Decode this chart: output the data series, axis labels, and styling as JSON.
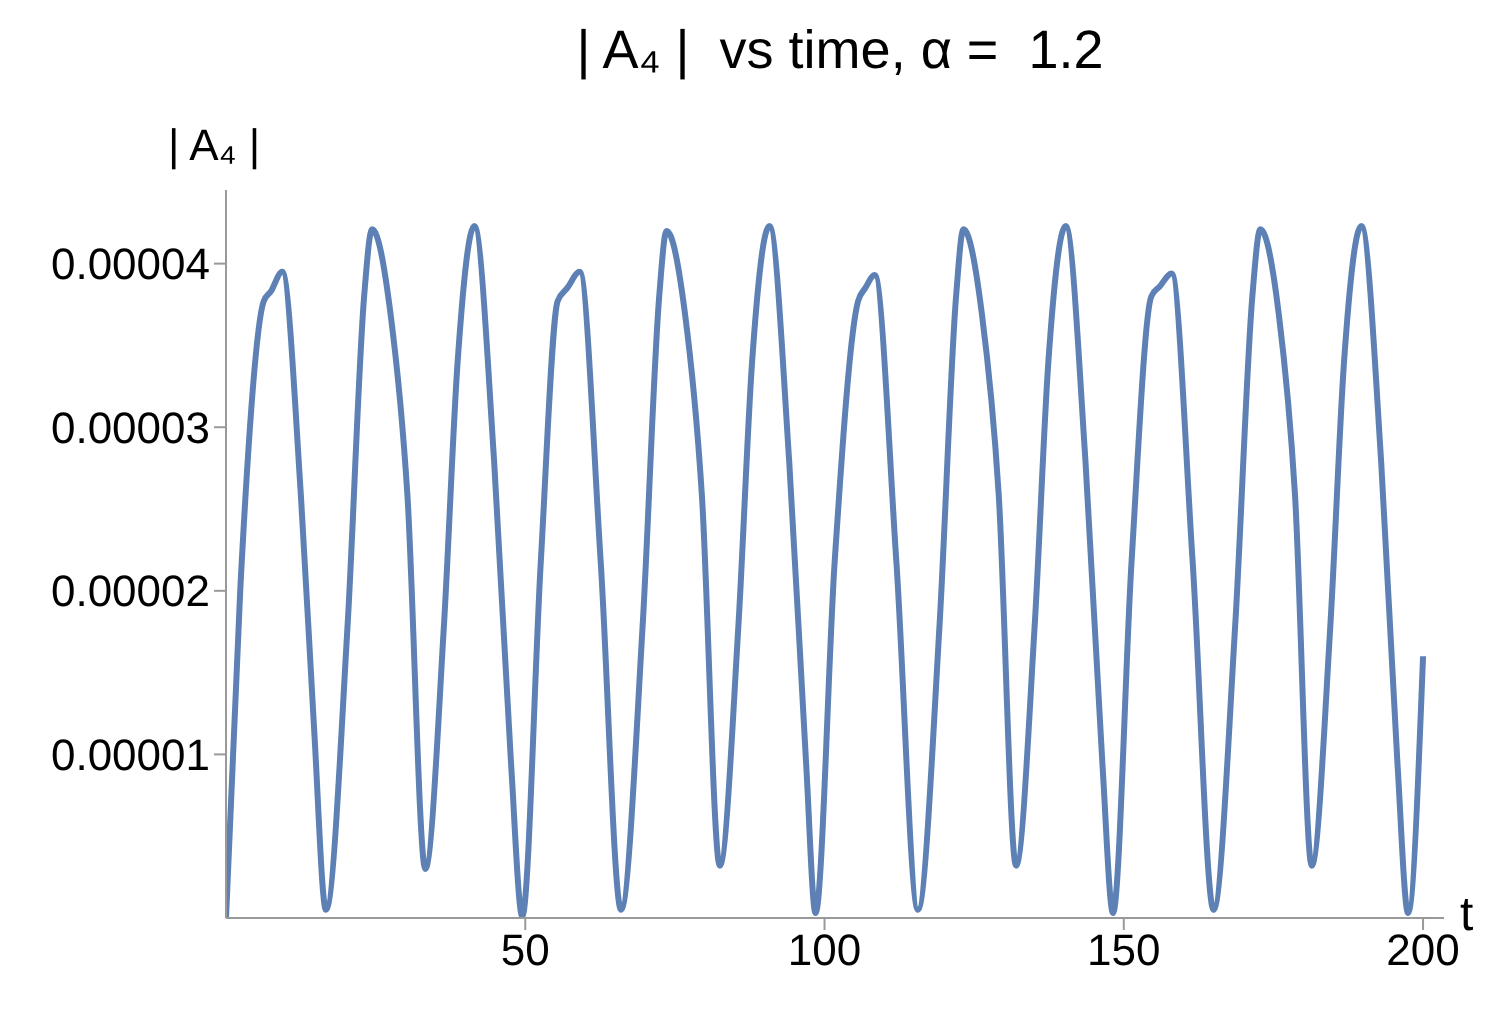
{
  "chart_data": {
    "type": "line",
    "title": "| A₄ |  vs time, α =  1.2",
    "xlabel": "t",
    "ylabel": "| A₄ |",
    "x": [
      0,
      2.4,
      6.3,
      7.5,
      9.4,
      12.5,
      14.7,
      16.7,
      20.3,
      23.1,
      24.4,
      27.5,
      30.3,
      33.3,
      36.4,
      38.7,
      41.5,
      44.8,
      47.6,
      49.5,
      52.6,
      55.4,
      57,
      59.1,
      62.6,
      66,
      69.6,
      72.4,
      73.6,
      76.7,
      79.5,
      82.5,
      85.6,
      87.9,
      90.8,
      94.1,
      96.9,
      98.5,
      101.7,
      105.6,
      106.8,
      108.4,
      112,
      115.6,
      119.2,
      122,
      123.2,
      126.3,
      129.1,
      132,
      135.1,
      137.4,
      140.3,
      143.6,
      146.4,
      148.2,
      151.3,
      154.6,
      156,
      158,
      161.5,
      165,
      168.6,
      171.5,
      172.8,
      175.9,
      178.6,
      181.4,
      184.5,
      186.8,
      189.7,
      193,
      195.7,
      197.5,
      200
    ],
    "series": [
      {
        "color": "#5e81b5",
        "values": [
          0,
          2.02e-05,
          3.77e-05,
          3.83e-05,
          3.95e-05,
          2.59e-05,
          1.17e-05,
          5e-07,
          1.78e-05,
          3.81e-05,
          4.21e-05,
          3.69e-05,
          2.59e-05,
          3e-06,
          1.78e-05,
          3.4e-05,
          4.23e-05,
          2.79e-05,
          9.6e-06,
          1e-07,
          2.18e-05,
          3.77e-05,
          3.85e-05,
          3.95e-05,
          2.18e-05,
          5e-07,
          1.78e-05,
          3.81e-05,
          4.2e-05,
          3.69e-05,
          2.59e-05,
          3.2e-06,
          1.78e-05,
          3.4e-05,
          4.23e-05,
          2.79e-05,
          9.6e-06,
          3e-07,
          2.18e-05,
          3.77e-05,
          3.85e-05,
          3.93e-05,
          2.18e-05,
          5e-07,
          1.78e-05,
          3.81e-05,
          4.21e-05,
          3.69e-05,
          2.59e-05,
          3.2e-06,
          1.78e-05,
          3.4e-05,
          4.23e-05,
          2.79e-05,
          9.6e-06,
          3e-07,
          2.18e-05,
          3.8e-05,
          3.86e-05,
          3.94e-05,
          2.18e-05,
          5e-07,
          1.78e-05,
          3.81e-05,
          4.21e-05,
          3.69e-05,
          2.59e-05,
          3.2e-06,
          1.78e-05,
          3.4e-05,
          4.23e-05,
          2.79e-05,
          9.6e-06,
          3e-07,
          1.6e-05
        ]
      }
    ],
    "xlim": [
      0,
      203.5
    ],
    "xticks": [
      50,
      100,
      150,
      200
    ],
    "ylim": [
      0,
      4.45e-05
    ],
    "yticks": [
      {
        "value": 1e-05,
        "label": "0.00001"
      },
      {
        "value": 2e-05,
        "label": "0.00002"
      },
      {
        "value": 3e-05,
        "label": "0.00003"
      },
      {
        "value": 4e-05,
        "label": "0.00004"
      }
    ],
    "grid": false,
    "marker": "none",
    "line_style": "solid"
  }
}
